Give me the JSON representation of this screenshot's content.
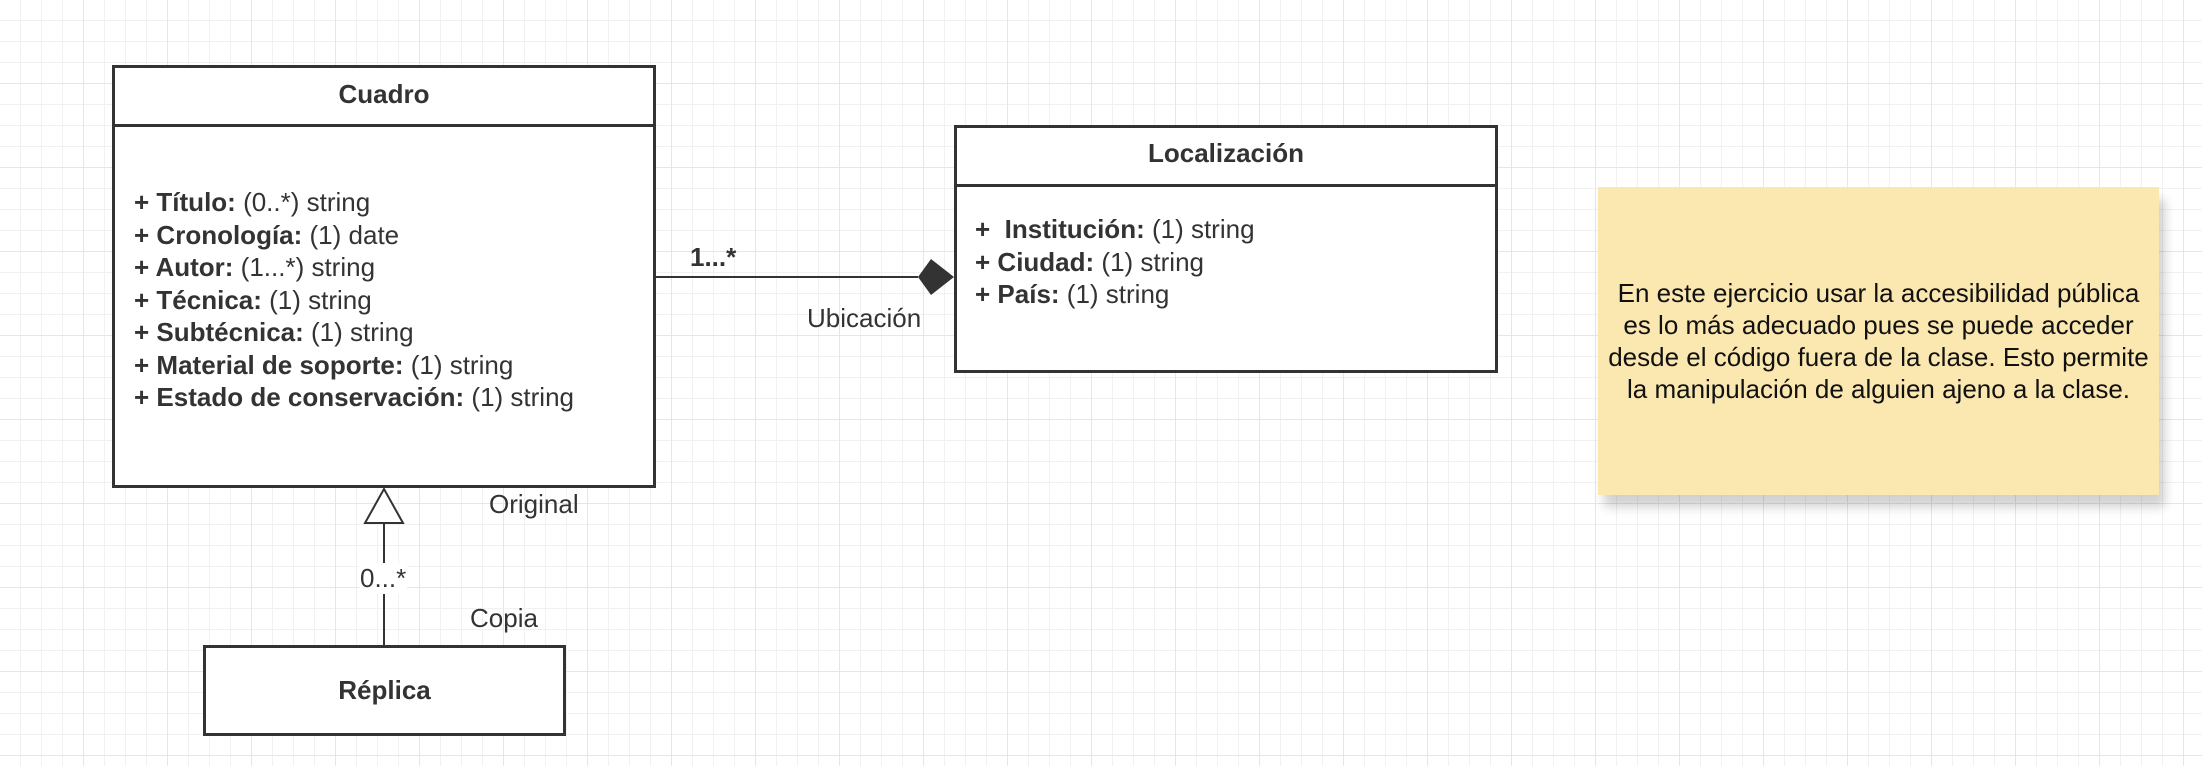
{
  "classes": {
    "cuadro": {
      "name": "Cuadro",
      "attributes": [
        {
          "prefix": "+ ",
          "name": "Título:",
          "type": " (0..*) string"
        },
        {
          "prefix": "+ ",
          "name": "Cronología:",
          "type": " (1) date"
        },
        {
          "prefix": "+ ",
          "name": "Autor:",
          "type": " (1...*) string"
        },
        {
          "prefix": "+ ",
          "name": "Técnica:",
          "type": " (1) string"
        },
        {
          "prefix": "+ ",
          "name": "Subtécnica:",
          "type": " (1) string"
        },
        {
          "prefix": "+ ",
          "name": "Material de soporte:",
          "type": " (1) string"
        },
        {
          "prefix": "+ ",
          "name": "Estado de conservación:",
          "type": " (1) string"
        }
      ]
    },
    "localizacion": {
      "name": "Localización",
      "attributes": [
        {
          "prefix": "+  ",
          "name": "Institución:",
          "type": " (1) string"
        },
        {
          "prefix": "+ ",
          "name": "Ciudad:",
          "type": " (1) string"
        },
        {
          "prefix": "+ ",
          "name": "País:",
          "type": " (1) string"
        }
      ]
    },
    "replica": {
      "name": "Réplica"
    }
  },
  "relations": {
    "composition": {
      "multiplicity": "1...*",
      "role": "Ubicación"
    },
    "generalization": {
      "target_role": "Original",
      "multiplicity": "0...*",
      "source_role": "Copia"
    }
  },
  "note": {
    "text": "En este ejercicio usar la accesibilidad pública es lo más adecuado pues se puede acceder desde el código fuera de la clase. Esto permite la manipulación de alguien ajeno a la clase."
  },
  "colors": {
    "line": "#333333",
    "note_fill": "#fbe7b0",
    "grid": "#e6e6e6"
  }
}
